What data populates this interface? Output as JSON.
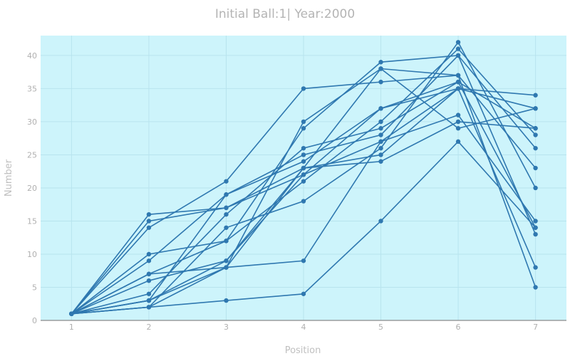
{
  "chart_data": {
    "type": "line",
    "title": "Initial Ball:1| Year:2000",
    "xlabel": "Position",
    "ylabel": "Number",
    "x": [
      1,
      2,
      3,
      4,
      5,
      6,
      7
    ],
    "xlim": [
      0.6,
      7.4
    ],
    "ylim": [
      0,
      43
    ],
    "yticks": [
      0,
      5,
      10,
      15,
      20,
      25,
      30,
      35,
      40
    ],
    "grid": true,
    "series": [
      {
        "values": [
          1,
          16,
          17,
          23,
          25,
          35,
          34
        ]
      },
      {
        "values": [
          1,
          15,
          17,
          22,
          32,
          35,
          32
        ]
      },
      {
        "values": [
          1,
          14,
          21,
          35,
          36,
          37,
          23
        ]
      },
      {
        "values": [
          1,
          10,
          12,
          29,
          39,
          40,
          26
        ]
      },
      {
        "values": [
          1,
          9,
          19,
          24,
          32,
          36,
          29
        ]
      },
      {
        "values": [
          1,
          7,
          12,
          21,
          30,
          41,
          28
        ]
      },
      {
        "values": [
          1,
          6,
          9,
          22,
          27,
          31,
          15
        ]
      },
      {
        "values": [
          1,
          4,
          16,
          26,
          29,
          36,
          14
        ]
      },
      {
        "values": [
          1,
          3,
          19,
          25,
          28,
          40,
          13
        ]
      },
      {
        "values": [
          1,
          2,
          14,
          18,
          26,
          42,
          20
        ]
      },
      {
        "values": [
          1,
          7,
          8,
          30,
          38,
          37,
          5
        ]
      },
      {
        "values": [
          1,
          3,
          8,
          9,
          27,
          35,
          8
        ]
      },
      {
        "values": [
          1,
          2,
          3,
          4,
          15,
          27,
          14
        ]
      },
      {
        "values": [
          1,
          2,
          8,
          23,
          24,
          30,
          29
        ]
      },
      {
        "values": [
          1,
          3,
          9,
          23,
          38,
          29,
          32
        ]
      }
    ]
  }
}
